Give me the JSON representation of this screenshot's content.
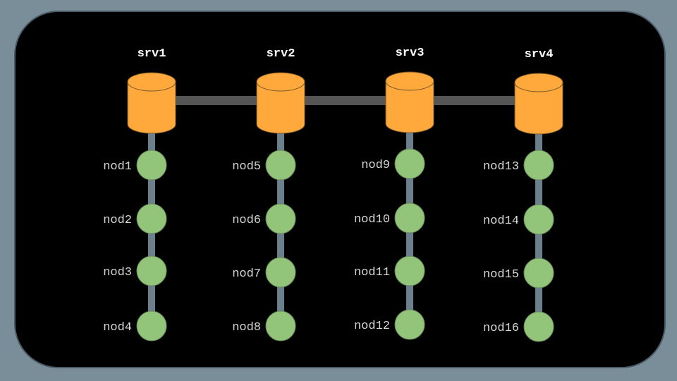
{
  "colors": {
    "page_bg": "#7a8e9a",
    "panel_bg": "#000000",
    "panel_border": "#4a5a66",
    "server_fill": "#ffa83c",
    "server_stroke": "#7a5a2a",
    "bus_link": "#555555",
    "node_link": "#6b7f8c",
    "node_fill": "#92c47a",
    "node_stroke": "#6a8a5c",
    "server_text": "#ffffff",
    "node_text": "#d8d8d8"
  },
  "servers": [
    {
      "label": "srv1",
      "nodes": [
        "nod1",
        "nod2",
        "nod3",
        "nod4"
      ]
    },
    {
      "label": "srv2",
      "nodes": [
        "nod5",
        "nod6",
        "nod7",
        "nod8"
      ]
    },
    {
      "label": "srv3",
      "nodes": [
        "nod9",
        "nod10",
        "nod11",
        "nod12"
      ]
    },
    {
      "label": "srv4",
      "nodes": [
        "nod13",
        "nod14",
        "nod15",
        "nod16"
      ]
    }
  ]
}
